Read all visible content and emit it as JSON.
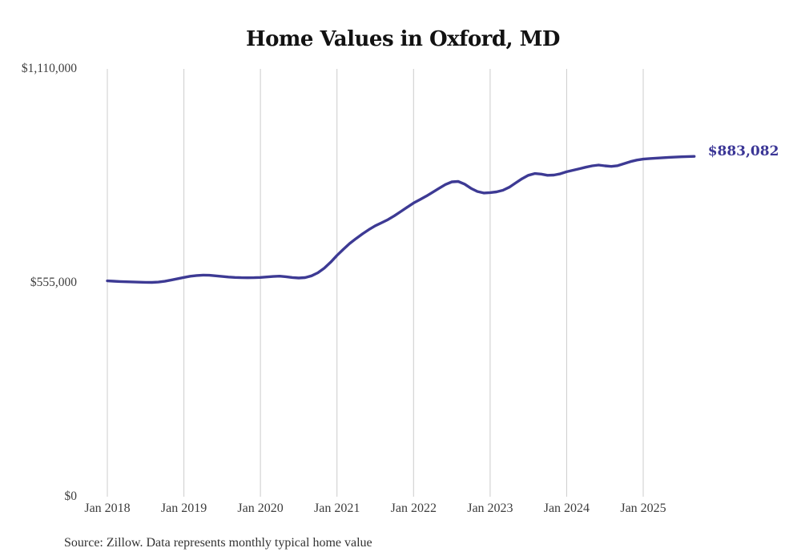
{
  "chart_data": {
    "type": "line",
    "title": "Home Values in Oxford, MD",
    "source_note": "Source: Zillow. Data represents monthly typical home value",
    "end_label": "$883,082",
    "latest_value": 883082,
    "x_tick_labels": [
      "Jan 2018",
      "Jan 2019",
      "Jan 2020",
      "Jan 2021",
      "Jan 2022",
      "Jan 2023",
      "Jan 2024",
      "Jan 2025"
    ],
    "y_tick_labels": [
      "$0",
      "$555,000",
      "$1,110,000"
    ],
    "y_ticks": [
      0,
      555000,
      1110000
    ],
    "ylim": [
      0,
      1110000
    ],
    "grid": "vertical-only",
    "legend_position": "none",
    "line_color": "#3d3a94",
    "gridline_color": "#cccccc",
    "series": [
      {
        "name": "Typical home value",
        "start": "2018-01",
        "frequency": "monthly",
        "values": [
          560000,
          559200,
          558400,
          557800,
          557200,
          556600,
          556200,
          556000,
          556800,
          559000,
          562000,
          565500,
          569000,
          572000,
          574000,
          575000,
          574500,
          573000,
          571500,
          570000,
          569000,
          568200,
          568000,
          568400,
          569000,
          570200,
          571500,
          572200,
          570800,
          568800,
          567400,
          568600,
          573000,
          581000,
          593000,
          608500,
          626000,
          642000,
          657000,
          670000,
          682000,
          693000,
          703000,
          711000,
          719000,
          729000,
          740000,
          751000,
          762000,
          771000,
          780000,
          790000,
          800000,
          810000,
          817000,
          818000,
          811000,
          800000,
          792000,
          788000,
          789000,
          791000,
          795000,
          803000,
          814000,
          825000,
          834000,
          838500,
          837000,
          834000,
          834500,
          838000,
          843000,
          847000,
          851000,
          855000,
          858500,
          860500,
          858500,
          857000,
          859000,
          864000,
          869500,
          873500,
          876000,
          877500,
          878500,
          879500,
          880500,
          881200,
          881900,
          882500,
          883082
        ]
      }
    ]
  }
}
